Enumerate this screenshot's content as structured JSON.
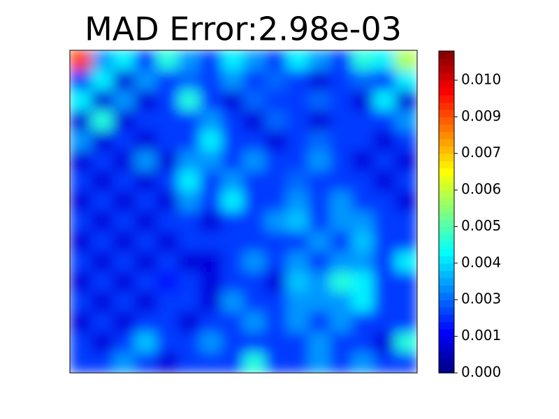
{
  "chart_data": {
    "type": "heatmap",
    "title": "MAD Error:2.98e-03",
    "colormap": "jet",
    "z": [
      [
        0.009,
        0.003,
        0.004,
        0.002,
        0.0045,
        0.003,
        0.002,
        0.004,
        0.003,
        0.002,
        0.004,
        0.003,
        0.002,
        0.0045,
        0.004,
        0.006
      ],
      [
        0.002,
        0.004,
        0.001,
        0.003,
        0.002,
        0.0025,
        0.002,
        0.003,
        0.002,
        0.0025,
        0.002,
        0.001,
        0.002,
        0.0025,
        0.002,
        0.004
      ],
      [
        0.004,
        0.001,
        0.003,
        0.001,
        0.002,
        0.0045,
        0.002,
        0.001,
        0.0025,
        0.002,
        0.002,
        0.0025,
        0.002,
        0.001,
        0.004,
        0.001
      ],
      [
        0.001,
        0.0045,
        0.001,
        0.002,
        0.002,
        0.002,
        0.003,
        0.002,
        0.001,
        0.0025,
        0.002,
        0.001,
        0.002,
        0.002,
        0.002,
        0.003
      ],
      [
        0.003,
        0.001,
        0.002,
        0.001,
        0.002,
        0.002,
        0.004,
        0.002,
        0.002,
        0.001,
        0.002,
        0.0025,
        0.002,
        0.002,
        0.001,
        0.002
      ],
      [
        0.001,
        0.002,
        0.001,
        0.003,
        0.001,
        0.003,
        0.003,
        0.002,
        0.003,
        0.002,
        0.002,
        0.003,
        0.002,
        0.001,
        0.002,
        0.001
      ],
      [
        0.002,
        0.001,
        0.002,
        0.001,
        0.002,
        0.004,
        0.002,
        0.003,
        0.002,
        0.002,
        0.0025,
        0.002,
        0.002,
        0.002,
        0.001,
        0.002
      ],
      [
        0.001,
        0.002,
        0.001,
        0.002,
        0.001,
        0.003,
        0.002,
        0.004,
        0.002,
        0.002,
        0.003,
        0.002,
        0.003,
        0.002,
        0.002,
        0.001
      ],
      [
        0.002,
        0.001,
        0.002,
        0.001,
        0.002,
        0.002,
        0.001,
        0.002,
        0.002,
        0.003,
        0.0035,
        0.002,
        0.003,
        0.003,
        0.002,
        0.002
      ],
      [
        0.001,
        0.002,
        0.001,
        0.002,
        0.001,
        0.002,
        0.002,
        0.002,
        0.002,
        0.002,
        0.002,
        0.003,
        0.002,
        0.0035,
        0.002,
        0.002
      ],
      [
        0.002,
        0.001,
        0.002,
        0.001,
        0.002,
        0.001,
        0.001,
        0.002,
        0.003,
        0.002,
        0.003,
        0.002,
        0.003,
        0.003,
        0.002,
        0.004
      ],
      [
        0.001,
        0.002,
        0.001,
        0.002,
        0.0015,
        0.002,
        0.001,
        0.002,
        0.002,
        0.001,
        0.0035,
        0.003,
        0.0045,
        0.004,
        0.002,
        0.002
      ],
      [
        0.002,
        0.001,
        0.002,
        0.001,
        0.002,
        0.002,
        0.001,
        0.003,
        0.002,
        0.002,
        0.003,
        0.003,
        0.003,
        0.004,
        0.002,
        0.002
      ],
      [
        0.001,
        0.002,
        0.001,
        0.002,
        0.002,
        0.001,
        0.002,
        0.002,
        0.003,
        0.002,
        0.003,
        0.002,
        0.003,
        0.002,
        0.002,
        0.002
      ],
      [
        0.002,
        0.001,
        0.002,
        0.0035,
        0.002,
        0.002,
        0.003,
        0.002,
        0.002,
        0.002,
        0.002,
        0.003,
        0.002,
        0.002,
        0.001,
        0.0045
      ],
      [
        0.002,
        0.002,
        0.003,
        0.002,
        0.001,
        0.002,
        0.002,
        0.002,
        0.0045,
        0.002,
        0.002,
        0.003,
        0.002,
        0.003,
        0.002,
        0.002
      ]
    ],
    "clim": [
      0,
      0.011
    ],
    "cticks": [
      {
        "value": 0,
        "label": "0.000"
      },
      {
        "value": 0.00125,
        "label": "0.001"
      },
      {
        "value": 0.0025,
        "label": "0.003"
      },
      {
        "value": 0.00375,
        "label": "0.004"
      },
      {
        "value": 0.005,
        "label": "0.005"
      },
      {
        "value": 0.00625,
        "label": "0.006"
      },
      {
        "value": 0.0075,
        "label": "0.007"
      },
      {
        "value": 0.00875,
        "label": "0.009"
      },
      {
        "value": 0.01,
        "label": "0.010"
      }
    ]
  }
}
